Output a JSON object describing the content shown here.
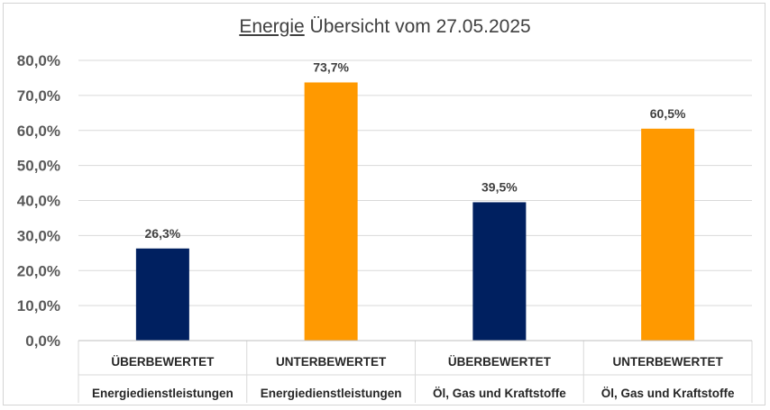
{
  "chart_data": {
    "type": "bar",
    "title_underlined": "Energie",
    "title_rest": " Übersicht vom 27.05.2025",
    "categories": [
      {
        "line1": "ÜBERBEWERTET",
        "line2": "Energiedienstleistungen"
      },
      {
        "line1": "UNTERBEWERTET",
        "line2": "Energiedienstleistungen"
      },
      {
        "line1": "ÜBERBEWERTET",
        "line2": "Öl, Gas und Kraftstoffe"
      },
      {
        "line1": "UNTERBEWERTET",
        "line2": "Öl, Gas und Kraftstoffe"
      }
    ],
    "values": [
      26.3,
      73.7,
      39.5,
      60.5
    ],
    "value_labels": [
      "26,3%",
      "73,7%",
      "39,5%",
      "60,5%"
    ],
    "bar_colors": [
      "#002060",
      "#FF9900",
      "#002060",
      "#FF9900"
    ],
    "ylim": [
      0,
      80
    ],
    "yticks": [
      0,
      10,
      20,
      30,
      40,
      50,
      60,
      70,
      80
    ],
    "ytick_labels": [
      "0,0%",
      "10,0%",
      "20,0%",
      "30,0%",
      "40,0%",
      "50,0%",
      "60,0%",
      "70,0%",
      "80,0%"
    ],
    "grid": true,
    "legend": "none",
    "xlabel": "",
    "ylabel": ""
  }
}
